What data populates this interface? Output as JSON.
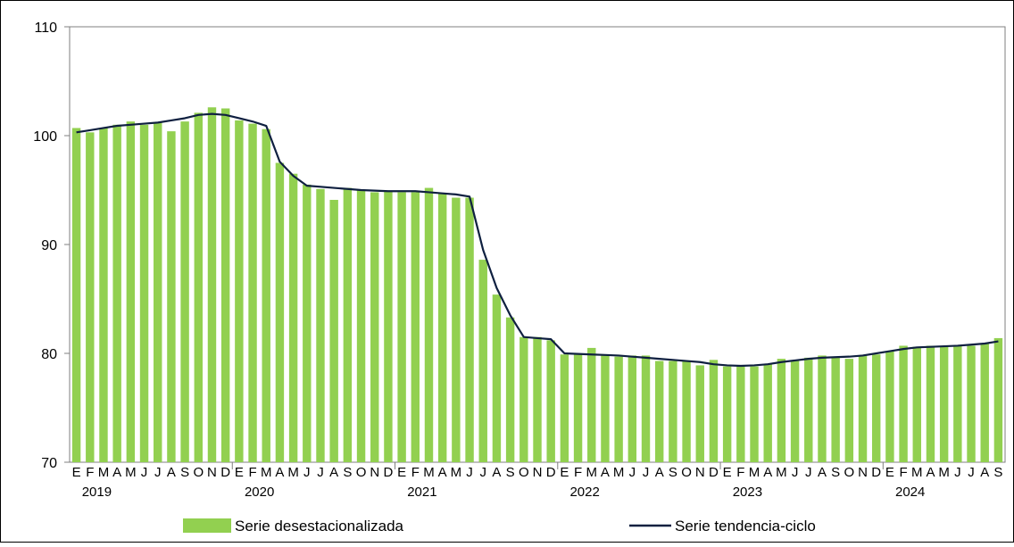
{
  "chart_data": {
    "type": "bar",
    "title": "",
    "xlabel": "",
    "ylabel": "",
    "ylim": [
      70,
      110
    ],
    "y_ticks": [
      70,
      80,
      90,
      100,
      110
    ],
    "grid": false,
    "legend_placement": "bottom",
    "month_labels": [
      "E",
      "F",
      "M",
      "A",
      "M",
      "J",
      "J",
      "A",
      "S",
      "O",
      "N",
      "D",
      "E",
      "F",
      "M",
      "A",
      "M",
      "J",
      "J",
      "A",
      "S",
      "O",
      "N",
      "D",
      "E",
      "F",
      "M",
      "A",
      "M",
      "J",
      "J",
      "A",
      "S",
      "O",
      "N",
      "D",
      "E",
      "F",
      "M",
      "A",
      "M",
      "J",
      "J",
      "A",
      "S",
      "O",
      "N",
      "D",
      "E",
      "F",
      "M",
      "A",
      "M",
      "J",
      "J",
      "A",
      "S",
      "O",
      "N",
      "D",
      "E",
      "F",
      "M",
      "A",
      "M",
      "J",
      "J",
      "A",
      "S"
    ],
    "year_labels": [
      {
        "label": "2019",
        "start_index": 0
      },
      {
        "label": "2020",
        "start_index": 12
      },
      {
        "label": "2021",
        "start_index": 24
      },
      {
        "label": "2022",
        "start_index": 36
      },
      {
        "label": "2023",
        "start_index": 48
      },
      {
        "label": "2024",
        "start_index": 60
      }
    ],
    "series": [
      {
        "name": "Serie desestacionalizada",
        "type": "bar",
        "color": "#92D050",
        "values": [
          100.7,
          100.3,
          100.7,
          101.0,
          101.3,
          101.0,
          101.2,
          100.4,
          101.3,
          102.1,
          102.6,
          102.5,
          101.4,
          101.1,
          100.6,
          97.5,
          96.5,
          95.5,
          95.1,
          94.1,
          95.2,
          95.0,
          94.8,
          94.9,
          94.8,
          94.8,
          95.2,
          94.7,
          94.3,
          94.3,
          88.6,
          85.4,
          83.3,
          81.5,
          81.5,
          81.2,
          79.9,
          79.9,
          80.5,
          79.9,
          79.7,
          79.8,
          79.8,
          79.3,
          79.3,
          79.3,
          78.9,
          79.4,
          78.8,
          78.8,
          78.8,
          79.0,
          79.5,
          79.3,
          79.6,
          79.8,
          79.6,
          79.5,
          79.8,
          79.9,
          80.2,
          80.7,
          80.6,
          80.7,
          80.6,
          80.7,
          80.7,
          80.9,
          81.4
        ]
      },
      {
        "name": "Serie tendencia-ciclo",
        "type": "line",
        "color": "#0F2040",
        "values": [
          100.3,
          100.5,
          100.7,
          100.9,
          101.0,
          101.1,
          101.2,
          101.4,
          101.6,
          101.9,
          102.0,
          101.9,
          101.6,
          101.3,
          100.9,
          97.6,
          96.3,
          95.4,
          95.3,
          95.2,
          95.1,
          95.0,
          94.95,
          94.9,
          94.9,
          94.9,
          94.8,
          94.7,
          94.6,
          94.4,
          89.5,
          86.0,
          83.5,
          81.5,
          81.4,
          81.3,
          80.0,
          79.95,
          79.9,
          79.85,
          79.8,
          79.7,
          79.6,
          79.5,
          79.4,
          79.3,
          79.2,
          79.0,
          78.9,
          78.85,
          78.9,
          79.0,
          79.2,
          79.35,
          79.5,
          79.6,
          79.65,
          79.7,
          79.8,
          80.0,
          80.2,
          80.4,
          80.55,
          80.6,
          80.65,
          80.7,
          80.8,
          80.9,
          81.1
        ]
      }
    ]
  }
}
